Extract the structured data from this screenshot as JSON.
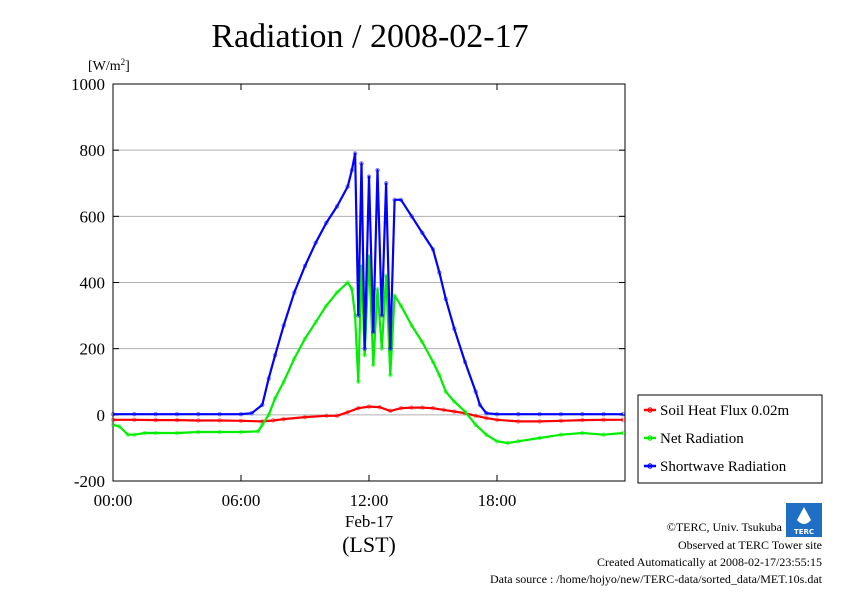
{
  "chart_data": {
    "type": "line",
    "title": "Radiation / 2008-02-17",
    "yunit": "[W/m",
    "yunit_sup": "2",
    "yunit_close": "]",
    "ylim": [
      -200,
      1000
    ],
    "yticks": [
      "1000",
      "800",
      "600",
      "400",
      "200",
      "0",
      "-200"
    ],
    "xlim_hours": [
      0,
      24
    ],
    "xticks": [
      "00:00",
      "06:00",
      "12:00",
      "18:00"
    ],
    "xdate": "Feb-17",
    "xlabel": "(LST)",
    "grid": true,
    "legend_position": "right",
    "series": [
      {
        "name": "Soil Heat Flux 0.02m",
        "color": "#ff0000",
        "x": [
          0,
          1,
          2,
          3,
          4,
          5,
          6,
          7,
          7.5,
          8,
          9,
          10,
          10.5,
          11,
          11.5,
          12,
          12.5,
          13,
          13.5,
          14,
          14.5,
          15,
          15.5,
          16,
          16.5,
          17,
          17.5,
          18,
          19,
          20,
          21,
          22,
          23,
          23.9
        ],
        "values": [
          -15,
          -15,
          -16,
          -16,
          -17,
          -17,
          -18,
          -20,
          -17,
          -13,
          -7,
          -3,
          -3,
          8,
          20,
          25,
          23,
          12,
          20,
          22,
          22,
          20,
          15,
          10,
          5,
          -3,
          -10,
          -15,
          -20,
          -20,
          -18,
          -16,
          -15,
          -15
        ]
      },
      {
        "name": "Net Radiation",
        "color": "#00ee00",
        "x": [
          0,
          0.3,
          0.7,
          1,
          1.5,
          2,
          3,
          4,
          5,
          6,
          6.8,
          7,
          7.3,
          7.6,
          8,
          8.5,
          9,
          9.5,
          10,
          10.5,
          11,
          11.2,
          11.35,
          11.5,
          11.65,
          11.8,
          12,
          12.2,
          12.4,
          12.6,
          12.8,
          13,
          13.2,
          13.5,
          14,
          14.5,
          15,
          15.3,
          15.6,
          16,
          16.5,
          17,
          17.5,
          18,
          18.5,
          19,
          20,
          21,
          22,
          23,
          23.9
        ],
        "values": [
          -30,
          -35,
          -60,
          -60,
          -55,
          -55,
          -55,
          -52,
          -52,
          -52,
          -50,
          -30,
          0,
          50,
          100,
          170,
          230,
          280,
          330,
          370,
          400,
          380,
          300,
          100,
          450,
          180,
          480,
          150,
          380,
          200,
          420,
          120,
          360,
          330,
          270,
          220,
          160,
          120,
          70,
          40,
          10,
          -30,
          -60,
          -80,
          -85,
          -80,
          -70,
          -60,
          -55,
          -60,
          -55
        ]
      },
      {
        "name": "Shortwave Radiation",
        "color": "#0000ff",
        "x": [
          0,
          1,
          2,
          3,
          4,
          5,
          6,
          6.5,
          7,
          7.3,
          7.6,
          8,
          8.5,
          9,
          9.5,
          10,
          10.5,
          11,
          11.2,
          11.35,
          11.5,
          11.65,
          11.8,
          12,
          12.2,
          12.4,
          12.6,
          12.8,
          13,
          13.2,
          13.5,
          14,
          14.5,
          15,
          15.3,
          15.6,
          16,
          16.5,
          17,
          17.2,
          17.5,
          18,
          19,
          20,
          21,
          22,
          23,
          23.9
        ],
        "values": [
          2,
          2,
          2,
          2,
          2,
          2,
          2,
          5,
          30,
          110,
          180,
          270,
          370,
          450,
          520,
          580,
          630,
          690,
          740,
          790,
          300,
          760,
          200,
          720,
          250,
          740,
          300,
          700,
          200,
          650,
          650,
          600,
          550,
          500,
          430,
          350,
          260,
          160,
          70,
          30,
          5,
          2,
          2,
          2,
          2,
          2,
          2,
          2
        ]
      }
    ]
  },
  "footer": {
    "copyright": "©TERC, Univ. Tsukuba",
    "observed": "Observed at TERC Tower site",
    "created": "Created Automatically at 2008-02-17/23:55:15",
    "source": "Data source : /home/hojyo/new/TERC-data/sorted_data/MET.10s.dat",
    "logo_text": "TERC"
  }
}
